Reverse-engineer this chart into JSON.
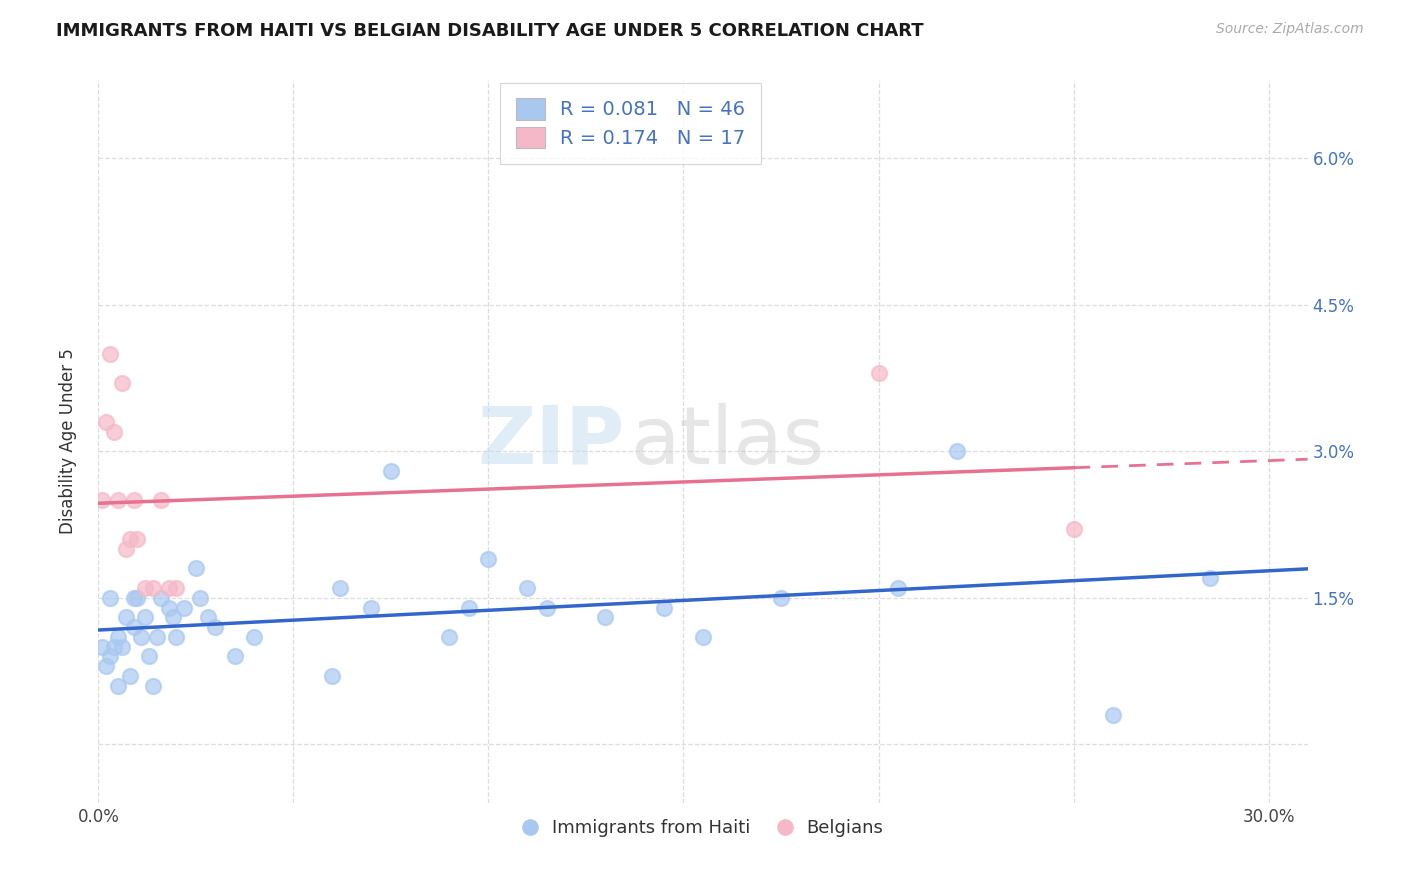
{
  "title": "IMMIGRANTS FROM HAITI VS BELGIAN DISABILITY AGE UNDER 5 CORRELATION CHART",
  "source": "Source: ZipAtlas.com",
  "ylabel": "Disability Age Under 5",
  "xlim": [
    0.0,
    0.31
  ],
  "ylim": [
    -0.006,
    0.068
  ],
  "haiti_color": "#a8c8f0",
  "belgian_color": "#f5b8c8",
  "haiti_line_color": "#3366cc",
  "belgian_line_color": "#e87090",
  "legend_text_color": "#4472c4",
  "haiti_R": 0.081,
  "haiti_N": 46,
  "belgian_R": 0.174,
  "belgian_N": 17,
  "background_color": "#ffffff",
  "grid_color": "#dddddd",
  "haiti_x": [
    0.001,
    0.002,
    0.003,
    0.003,
    0.004,
    0.005,
    0.005,
    0.006,
    0.007,
    0.008,
    0.009,
    0.009,
    0.01,
    0.011,
    0.012,
    0.013,
    0.014,
    0.015,
    0.016,
    0.018,
    0.019,
    0.02,
    0.022,
    0.025,
    0.026,
    0.028,
    0.03,
    0.035,
    0.04,
    0.06,
    0.062,
    0.07,
    0.075,
    0.09,
    0.095,
    0.1,
    0.11,
    0.115,
    0.13,
    0.145,
    0.155,
    0.175,
    0.205,
    0.22,
    0.26,
    0.285
  ],
  "haiti_y": [
    0.01,
    0.008,
    0.015,
    0.009,
    0.01,
    0.006,
    0.011,
    0.01,
    0.013,
    0.007,
    0.012,
    0.015,
    0.015,
    0.011,
    0.013,
    0.009,
    0.006,
    0.011,
    0.015,
    0.014,
    0.013,
    0.011,
    0.014,
    0.018,
    0.015,
    0.013,
    0.012,
    0.009,
    0.011,
    0.007,
    0.016,
    0.014,
    0.028,
    0.011,
    0.014,
    0.019,
    0.016,
    0.014,
    0.013,
    0.014,
    0.011,
    0.015,
    0.016,
    0.03,
    0.003,
    0.017
  ],
  "belgian_x": [
    0.001,
    0.002,
    0.003,
    0.004,
    0.005,
    0.006,
    0.007,
    0.008,
    0.009,
    0.01,
    0.012,
    0.014,
    0.016,
    0.018,
    0.02,
    0.2,
    0.25
  ],
  "belgian_y": [
    0.025,
    0.033,
    0.04,
    0.032,
    0.025,
    0.037,
    0.02,
    0.021,
    0.025,
    0.021,
    0.016,
    0.016,
    0.025,
    0.016,
    0.016,
    0.038,
    0.022
  ]
}
